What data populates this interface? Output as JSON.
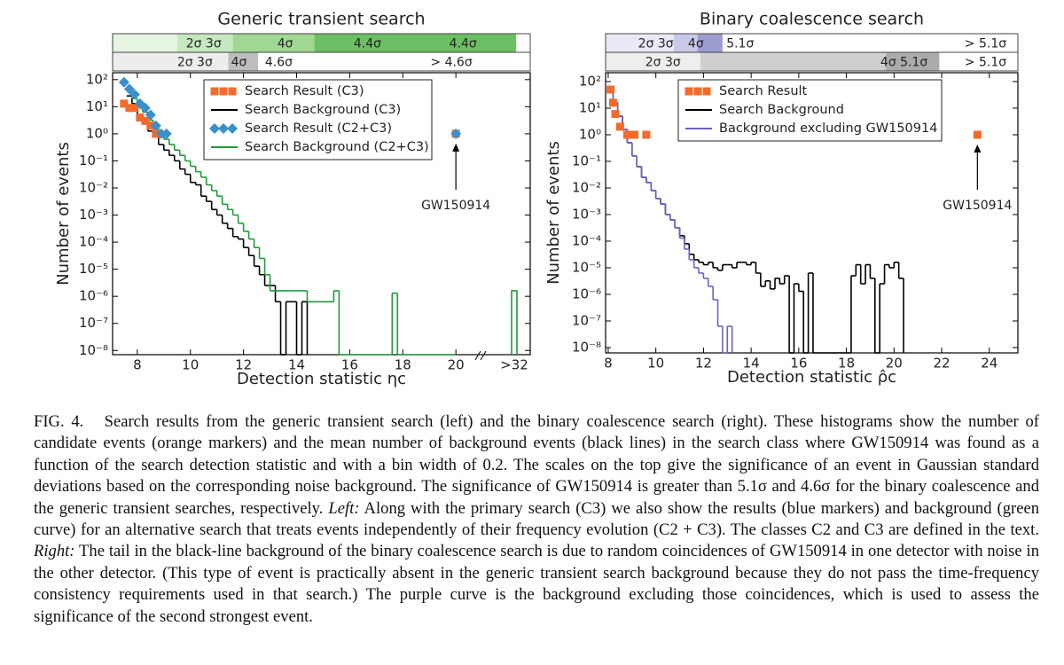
{
  "chart_data": [
    {
      "type": "histogram",
      "title": "Generic transient search",
      "xlabel": "Detection statistic ηc",
      "ylabel": "Number of events",
      "xlim": [
        7.07,
        22.8
      ],
      "ylim": [
        7e-09,
        180
      ],
      "log_y": true,
      "legend": "upper right",
      "xticks": [
        8,
        10,
        12,
        14,
        16,
        18,
        20
      ],
      "x_overflow_label": ">32",
      "yticks": [
        {
          "value": 100,
          "label": "10²"
        },
        {
          "value": 10,
          "label": "10¹"
        },
        {
          "value": 1,
          "label": "10⁰"
        },
        {
          "value": 0.1,
          "label": "10⁻¹"
        },
        {
          "value": 0.01,
          "label": "10⁻²"
        },
        {
          "value": 0.001,
          "label": "10⁻³"
        },
        {
          "value": 0.0001,
          "label": "10⁻⁴"
        },
        {
          "value": 1e-05,
          "label": "10⁻⁵"
        },
        {
          "value": 1e-06,
          "label": "10⁻⁶"
        },
        {
          "value": 1e-07,
          "label": "10⁻⁷"
        },
        {
          "value": 1e-08,
          "label": "10⁻⁸"
        }
      ],
      "sigma_scales": [
        {
          "bands": [
            {
              "from": 7.07,
              "to": 9.5,
              "color": "#e6f4e2"
            },
            {
              "from": 9.5,
              "to": 11.6,
              "color": "#c6e8bf"
            },
            {
              "from": 11.6,
              "to": 14.67,
              "color": "#9fd793"
            },
            {
              "from": 14.67,
              "to": 22.27,
              "color": "#6cc063"
            }
          ],
          "labels": [
            {
              "text": "2σ 3σ",
              "x": 10.5
            },
            {
              "text": "4σ",
              "x": 13.57
            },
            {
              "text": "4.4σ",
              "x": 16.67
            },
            {
              "text": "4.4σ",
              "x": 20.27
            }
          ]
        },
        {
          "bands": [
            {
              "from": 7.07,
              "to": 11.43,
              "color": "#ededed"
            },
            {
              "from": 11.43,
              "to": 12.55,
              "color": "#bdbdbd"
            }
          ],
          "labels": [
            {
              "text": "2σ 3σ",
              "x": 10.17
            },
            {
              "text": "4σ",
              "x": 11.83
            },
            {
              "text": "4.6σ",
              "x": 13.33
            },
            {
              "text": "> 4.6σ",
              "x": 19.83
            }
          ]
        }
      ],
      "series": [
        {
          "name": "Search Result (C3)",
          "color": "#f26b2a",
          "style": "markers",
          "marker": "square",
          "x": [
            7.5,
            7.7,
            7.9,
            8.1,
            8.3,
            8.5,
            8.7,
            20.0
          ],
          "values": [
            13,
            9,
            9,
            4,
            3,
            2,
            1,
            1
          ]
        },
        {
          "name": "Search Background (C3)",
          "color": "#000000",
          "style": "step",
          "bins": [
            7.6,
            7.8,
            8.0,
            8.2,
            8.4,
            8.6,
            8.8,
            9.0,
            9.2,
            9.4,
            9.6,
            9.8,
            10.0,
            10.2,
            10.4,
            10.6,
            10.8,
            11.0,
            11.2,
            11.4,
            11.6,
            11.8,
            12.0,
            12.2,
            12.4,
            12.6,
            12.8,
            13.0,
            13.2,
            13.4,
            13.6,
            13.8,
            14.0,
            14.2,
            14.4
          ],
          "values": [
            25,
            13,
            5,
            3.2,
            1.26,
            0.79,
            0.4,
            0.25,
            0.16,
            0.1,
            0.05,
            0.032,
            0.016,
            0.013,
            0.005,
            0.0032,
            0.0016,
            0.001,
            0.0005,
            0.00032,
            0.00016,
            0.00013,
            6.3e-05,
            3.2e-05,
            1.3e-05,
            6.3e-06,
            2.5e-06,
            2.5e-06,
            6.3e-07,
            0,
            6.3e-07,
            6.3e-07,
            0,
            6.3e-07
          ]
        },
        {
          "name": "Search Result (C2+C3)",
          "color": "#3b8fcb",
          "style": "markers",
          "marker": "diamond",
          "x": [
            7.5,
            7.7,
            7.9,
            8.1,
            8.3,
            8.5,
            8.7,
            8.9,
            9.1,
            20.0
          ],
          "values": [
            80,
            45,
            28,
            13,
            9,
            5,
            2,
            1,
            1,
            1
          ]
        },
        {
          "name": "Search Background (C2+C3)",
          "color": "#1f9a3c",
          "style": "step",
          "bins": [
            7.6,
            7.8,
            8.0,
            8.2,
            8.4,
            8.6,
            8.8,
            9.0,
            9.2,
            9.4,
            9.6,
            9.8,
            10.0,
            10.2,
            10.4,
            10.6,
            10.8,
            11.0,
            11.2,
            11.4,
            11.6,
            11.8,
            12.0,
            12.2,
            12.4,
            12.6,
            12.8,
            13.0,
            14.4,
            15.4,
            15.6,
            17.6,
            17.8,
            20.0
          ],
          "values": [
            40,
            20,
            10,
            6.3,
            3.2,
            2,
            1,
            0.63,
            0.4,
            0.25,
            0.16,
            0.1,
            0.063,
            0.04,
            0.025,
            0.013,
            0.008,
            0.005,
            0.0025,
            0.0016,
            0.001,
            0.0005,
            0.00025,
            0.00013,
            6.3e-05,
            2.5e-05,
            6.3e-06,
            1.6e-06,
            6.3e-07,
            1.6e-06,
            0,
            1.3e-06,
            0
          ],
          "overflow_value": 1.6e-06
        }
      ],
      "annotation": "GW150914"
    },
    {
      "type": "histogram",
      "title": "Binary coalescence search",
      "xlabel": "Detection statistic ρ̂c",
      "ylabel": "Number of events",
      "xlim": [
        7.89,
        25.2
      ],
      "ylim": [
        6.3e-09,
        215
      ],
      "log_y": true,
      "legend": "upper right",
      "xticks": [
        8,
        10,
        12,
        14,
        16,
        18,
        20,
        22,
        24
      ],
      "yticks": [
        {
          "value": 100,
          "label": "10²"
        },
        {
          "value": 10,
          "label": "10¹"
        },
        {
          "value": 1,
          "label": "10⁰"
        },
        {
          "value": 0.1,
          "label": "10⁻¹"
        },
        {
          "value": 0.01,
          "label": "10⁻²"
        },
        {
          "value": 0.001,
          "label": "10⁻³"
        },
        {
          "value": 0.0001,
          "label": "10⁻⁴"
        },
        {
          "value": 1e-05,
          "label": "10⁻⁵"
        },
        {
          "value": 1e-06,
          "label": "10⁻⁶"
        },
        {
          "value": 1e-07,
          "label": "10⁻⁷"
        },
        {
          "value": 1e-08,
          "label": "10⁻⁸"
        }
      ],
      "sigma_scales": [
        {
          "bands": [
            {
              "from": 7.89,
              "to": 10.75,
              "color": "#e9e9f5"
            },
            {
              "from": 10.75,
              "to": 11.75,
              "color": "#c8c8e9"
            },
            {
              "from": 11.75,
              "to": 12.8,
              "color": "#9d9dd2"
            }
          ],
          "labels": [
            {
              "text": "2σ 3σ",
              "x": 10.0
            },
            {
              "text": "4σ",
              "x": 11.68
            },
            {
              "text": "5.1σ",
              "x": 13.54
            },
            {
              "text": "> 5.1σ",
              "x": 23.84
            }
          ]
        },
        {
          "bands": [
            {
              "from": 7.89,
              "to": 11.87,
              "color": "#eeeeee"
            },
            {
              "from": 11.87,
              "to": 19.67,
              "color": "#cfcfcf"
            },
            {
              "from": 19.67,
              "to": 21.9,
              "color": "#ababab"
            }
          ],
          "labels": [
            {
              "text": "2σ 3σ",
              "x": 10.3
            },
            {
              "text": "4σ 5.1σ",
              "x": 20.42
            },
            {
              "text": "> 5.1σ",
              "x": 23.84
            }
          ]
        }
      ],
      "series": [
        {
          "name": "Search Result",
          "color": "#f26b2a",
          "style": "markers",
          "marker": "square",
          "x": [
            8.1,
            8.2,
            8.3,
            8.5,
            8.8,
            9.1,
            9.6,
            23.5
          ],
          "values": [
            50,
            16,
            6,
            2,
            1,
            1,
            1,
            1
          ]
        },
        {
          "name": "Search Background",
          "color": "#000000",
          "style": "step",
          "bins": [
            8.0,
            8.2,
            8.4,
            8.6,
            8.8,
            9.0,
            9.2,
            9.4,
            9.6,
            9.8,
            10.0,
            10.2,
            10.4,
            10.6,
            10.8,
            11.0,
            11.2,
            11.4,
            11.6,
            11.8,
            12.0,
            12.2,
            12.4,
            12.6,
            12.8,
            13.0,
            13.2,
            13.4,
            13.6,
            13.8,
            14.0,
            14.2,
            14.4,
            14.6,
            14.8,
            15.0,
            15.2,
            15.4,
            15.6,
            15.8,
            16.0,
            16.2,
            16.4,
            16.6,
            18.2,
            18.4,
            18.6,
            18.8,
            19.0,
            19.2,
            19.4,
            19.6,
            19.8,
            20.0,
            20.2,
            20.4
          ],
          "values": [
            50,
            16,
            5,
            1.6,
            0.5,
            0.16,
            0.063,
            0.025,
            0.016,
            0.008,
            0.004,
            0.0025,
            0.001,
            0.00063,
            0.00032,
            0.00016,
            8e-05,
            3.2e-05,
            2e-05,
            1.6e-05,
            1.3e-05,
            1.6e-05,
            1e-05,
            8e-06,
            1.3e-05,
            1.3e-05,
            1e-05,
            1.6e-05,
            1.6e-05,
            1.3e-05,
            1.6e-05,
            6.3e-06,
            2e-06,
            3.2e-06,
            1.6e-06,
            4e-06,
            2.5e-06,
            5e-06,
            0,
            2.5e-06,
            1.3e-06,
            0,
            6.3e-06,
            0,
            5e-06,
            1.3e-05,
            2.5e-06,
            1.3e-05,
            4e-06,
            0,
            2.5e-06,
            1.3e-05,
            1e-05,
            1.6e-05,
            4e-06
          ]
        },
        {
          "name": "Background excluding GW150914",
          "color": "#6f5fc4",
          "style": "step",
          "bins": [
            8.0,
            8.2,
            8.4,
            8.6,
            8.8,
            9.0,
            9.2,
            9.4,
            9.6,
            9.8,
            10.0,
            10.2,
            10.4,
            10.6,
            10.8,
            11.0,
            11.2,
            11.4,
            11.6,
            11.8,
            12.0,
            12.2,
            12.4,
            12.6,
            12.8,
            13.0,
            13.2
          ],
          "values": [
            50,
            16,
            5,
            1.6,
            0.5,
            0.16,
            0.063,
            0.025,
            0.016,
            0.008,
            0.004,
            0.0025,
            0.001,
            0.00063,
            0.00032,
            0.00013,
            5e-05,
            2e-05,
            1e-05,
            6.3e-06,
            4e-06,
            2e-06,
            6.3e-07,
            6.3e-08,
            0,
            6.3e-08
          ]
        }
      ],
      "annotation": "GW150914"
    }
  ],
  "caption": {
    "label": "FIG. 4.",
    "body_1": "Search results from the generic transient search (left) and the binary coalescence search (right). These histograms show the number of candidate events (orange markers) and the mean number of background events (black lines) in the search class where GW150914 was found as a function of the search detection statistic and with a bin width of 0.2. The scales on the top give the significance of an event in Gaussian standard deviations based on the corresponding noise background. The significance of GW150914 is greater than 5.1σ and 4.6σ for the binary coalescence and the generic transient searches, respectively.",
    "left_label": "Left:",
    "body_2": "Along with the primary search (C3) we also show the results (blue markers) and background (green curve) for an alternative search that treats events independently of their frequency evolution (C2 + C3). The classes C2 and C3 are defined in the text.",
    "right_label": "Right:",
    "body_3": "The tail in the black-line background of the binary coalescence search is due to random coincidences of GW150914 in one detector with noise in the other detector. (This type of event is practically absent in the generic transient search background because they do not pass the time-frequency consistency requirements used in that search.) The purple curve is the background excluding those coincidences, which is used to assess the significance of the second strongest event."
  }
}
